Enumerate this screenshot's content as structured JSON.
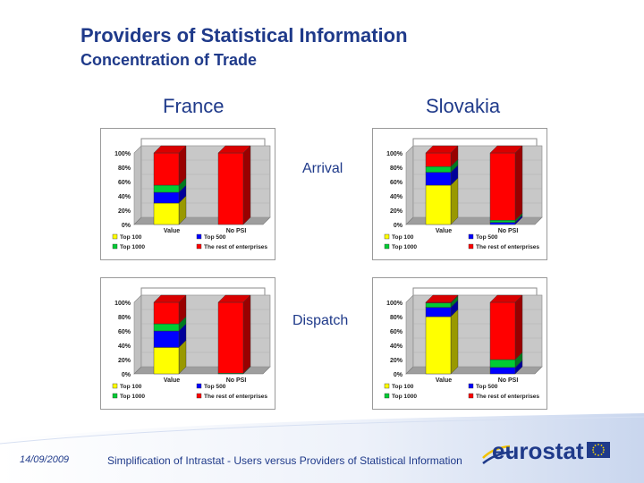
{
  "slide": {
    "title": "Providers of Statistical Information",
    "subtitle": "Concentration of Trade",
    "columns": [
      "France",
      "Slovakia"
    ],
    "rows": [
      "Arrival",
      "Dispatch"
    ],
    "footer_date": "14/09/2009",
    "footer_text": "Simplification of Intrastat - Users versus Providers of Statistical Information",
    "logo_text": "eurostat"
  },
  "colors": {
    "top100": "#ffff00",
    "top500": "#0000ff",
    "top1000": "#00cc33",
    "rest": "#ff0000",
    "title": "#1f3a8a"
  },
  "chart_data": [
    {
      "type": "bar",
      "stacked": true,
      "panel": "France - Arrival",
      "categories": [
        "Value",
        "No PSI"
      ],
      "y_ticks": [
        "100%",
        "80%",
        "60%",
        "40%",
        "20%",
        "0%"
      ],
      "ylim": [
        0,
        100
      ],
      "series": [
        {
          "name": "Top 100",
          "values": [
            30,
            0
          ]
        },
        {
          "name": "Top 500",
          "values": [
            15,
            0
          ]
        },
        {
          "name": "Top 1000",
          "values": [
            10,
            0
          ]
        },
        {
          "name": "The rest of enterprises",
          "values": [
            45,
            100
          ]
        }
      ],
      "legend": [
        "Top 100",
        "Top 500",
        "Top 1000",
        "The rest of enterprises"
      ]
    },
    {
      "type": "bar",
      "stacked": true,
      "panel": "Slovakia - Arrival",
      "categories": [
        "Value",
        "No PSI"
      ],
      "y_ticks": [
        "100%",
        "80%",
        "60%",
        "40%",
        "20%",
        "0%"
      ],
      "ylim": [
        0,
        100
      ],
      "series": [
        {
          "name": "Top 100",
          "values": [
            55,
            0
          ]
        },
        {
          "name": "Top 500",
          "values": [
            18,
            3
          ]
        },
        {
          "name": "Top 1000",
          "values": [
            8,
            3
          ]
        },
        {
          "name": "The rest of enterprises",
          "values": [
            19,
            94
          ]
        }
      ],
      "legend": [
        "Top 100",
        "Top 500",
        "Top 1000",
        "The rest of enterprises"
      ]
    },
    {
      "type": "bar",
      "stacked": true,
      "panel": "France - Dispatch",
      "categories": [
        "Value",
        "No PSI"
      ],
      "y_ticks": [
        "100%",
        "80%",
        "60%",
        "40%",
        "20%",
        "0%"
      ],
      "ylim": [
        0,
        100
      ],
      "series": [
        {
          "name": "Top 100",
          "values": [
            37,
            0
          ]
        },
        {
          "name": "Top 500",
          "values": [
            23,
            0
          ]
        },
        {
          "name": "Top 1000",
          "values": [
            10,
            1
          ]
        },
        {
          "name": "The rest of enterprises",
          "values": [
            30,
            99
          ]
        }
      ],
      "legend": [
        "Top 100",
        "Top 500",
        "Top 1000",
        "The rest of enterprises"
      ]
    },
    {
      "type": "bar",
      "stacked": true,
      "panel": "Slovakia - Dispatch",
      "categories": [
        "Value",
        "No PSI"
      ],
      "y_ticks": [
        "100%",
        "80%",
        "60%",
        "40%",
        "20%",
        "0%"
      ],
      "ylim": [
        0,
        100
      ],
      "series": [
        {
          "name": "Top 100",
          "values": [
            80,
            0
          ]
        },
        {
          "name": "Top 500",
          "values": [
            13,
            9
          ]
        },
        {
          "name": "Top 1000",
          "values": [
            6,
            11
          ]
        },
        {
          "name": "The rest of enterprises",
          "values": [
            1,
            80
          ]
        }
      ],
      "legend": [
        "Top 100",
        "Top 500",
        "Top 1000",
        "The rest of enterprises"
      ]
    }
  ]
}
